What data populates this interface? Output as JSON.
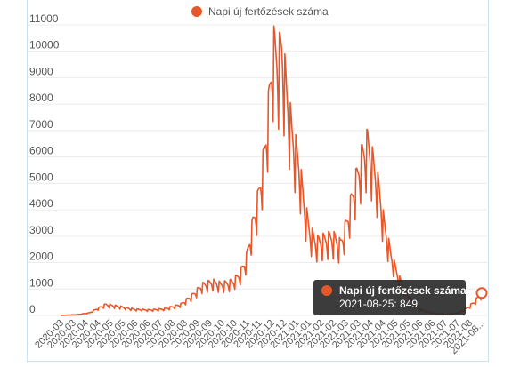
{
  "chart_data": {
    "type": "line",
    "series": [
      {
        "name": "Napi új fertőzések száma",
        "color": "#e8572a",
        "points": [
          [
            "2020-03-04",
            0
          ],
          [
            "2020-03-25",
            30
          ],
          [
            "2020-04-10",
            100
          ],
          [
            "2020-04-20",
            260
          ],
          [
            "2020-05-01",
            420
          ],
          [
            "2020-05-20",
            330
          ],
          [
            "2020-06-05",
            240
          ],
          [
            "2020-06-25",
            210
          ],
          [
            "2020-07-15",
            250
          ],
          [
            "2020-08-05",
            420
          ],
          [
            "2020-08-20",
            780
          ],
          [
            "2020-09-01",
            1150
          ],
          [
            "2020-09-15",
            1280
          ],
          [
            "2020-09-25",
            1180
          ],
          [
            "2020-10-10",
            1280
          ],
          [
            "2020-10-20",
            1600
          ],
          [
            "2020-10-28",
            2200
          ],
          [
            "2020-11-05",
            3500
          ],
          [
            "2020-11-12",
            4500
          ],
          [
            "2020-11-20",
            6200
          ],
          [
            "2020-11-26",
            8200
          ],
          [
            "2020-12-01",
            10200
          ],
          [
            "2020-12-08",
            9800
          ],
          [
            "2020-12-12",
            10300
          ],
          [
            "2020-12-18",
            8600
          ],
          [
            "2020-12-25",
            7000
          ],
          [
            "2021-01-03",
            5800
          ],
          [
            "2021-01-10",
            4200
          ],
          [
            "2021-01-17",
            3200
          ],
          [
            "2021-01-25",
            2800
          ],
          [
            "2021-02-05",
            2900
          ],
          [
            "2021-02-15",
            3000
          ],
          [
            "2021-02-25",
            2700
          ],
          [
            "2021-03-05",
            3500
          ],
          [
            "2021-03-15",
            4900
          ],
          [
            "2021-03-25",
            6100
          ],
          [
            "2021-04-01",
            6600
          ],
          [
            "2021-04-08",
            5800
          ],
          [
            "2021-04-15",
            4900
          ],
          [
            "2021-04-22",
            3500
          ],
          [
            "2021-05-01",
            2300
          ],
          [
            "2021-05-10",
            1500
          ],
          [
            "2021-05-20",
            900
          ],
          [
            "2021-05-30",
            450
          ],
          [
            "2021-06-10",
            200
          ],
          [
            "2021-06-25",
            80
          ],
          [
            "2021-07-10",
            40
          ],
          [
            "2021-07-25",
            100
          ],
          [
            "2021-08-05",
            250
          ],
          [
            "2021-08-15",
            500
          ],
          [
            "2021-08-25",
            849
          ]
        ]
      }
    ],
    "x_tick_labels": [
      "2020-03",
      "2020-03",
      "2020-04",
      "2020-04",
      "2020-05",
      "2020-05",
      "2020-06",
      "2020-06",
      "2020-07",
      "2020-08",
      "2020-08",
      "2020-09",
      "2020-09",
      "2020-10",
      "2020-10",
      "2020-11",
      "2020-11",
      "2020-12",
      "2020-12",
      "2021-01",
      "2021-01",
      "2021-02",
      "2021-02",
      "2021-03",
      "2021-03",
      "2021-04",
      "2021-04",
      "2021-05",
      "2021-05",
      "2021-06",
      "2021-06",
      "2021-07",
      "2021-07",
      "2021-08",
      "2021-08..."
    ],
    "y_ticks": [
      0,
      1000,
      2000,
      3000,
      4000,
      5000,
      6000,
      7000,
      8000,
      9000,
      10000,
      11000
    ],
    "ylim": [
      0,
      11000
    ],
    "xlim": [
      "2020-03-04",
      "2021-08-25"
    ],
    "grid": true,
    "legend": {
      "position": "top-center",
      "label": "Napi új fertőzések száma"
    },
    "tooltip": {
      "title": "Napi új fertőzések száma",
      "text": "2021-08-25: 849"
    }
  }
}
